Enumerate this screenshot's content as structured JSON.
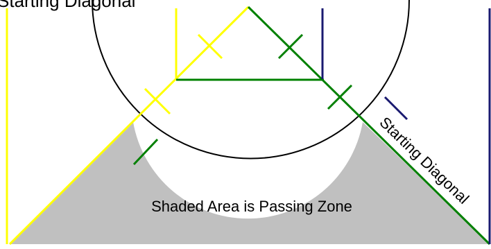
{
  "diagram": {
    "top_caption": "Starting Diagonal",
    "zone_label": "Shaded Area is Passing Zone",
    "diagonal_label": "Starting Diagonal",
    "colors": {
      "zone_fill": "#c0c0c0",
      "yellow": "#ffff00",
      "green": "#008000",
      "navy": "#191970",
      "circle": "#000000",
      "background": "#ffffff"
    }
  }
}
